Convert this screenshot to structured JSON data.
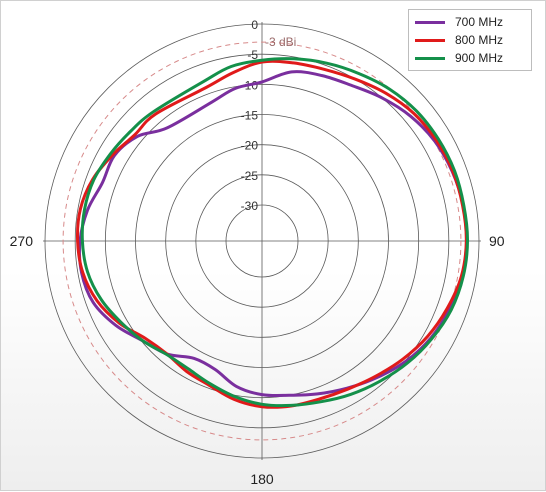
{
  "chart_data": {
    "type": "polar-line",
    "r_axis": {
      "ticks": [
        0,
        -5,
        -10,
        -15,
        -20,
        -25,
        -30
      ],
      "tick_labels": [
        "0",
        "-5",
        "-10",
        "-15",
        "-20",
        "-25",
        "-30"
      ],
      "range": [
        -30,
        0
      ]
    },
    "angle_labels": [
      "90",
      "180",
      "270"
    ],
    "reference": {
      "label": "-3 dBi",
      "value": -3,
      "color": "#d78a8a"
    },
    "series": [
      {
        "name": "700 MHz",
        "color": "#7a2f9e",
        "theta": [
          0,
          10,
          20,
          30,
          40,
          50,
          60,
          70,
          80,
          90,
          100,
          110,
          120,
          130,
          140,
          150,
          160,
          170,
          180,
          190,
          200,
          210,
          220,
          230,
          240,
          250,
          260,
          270,
          280,
          290,
          300,
          310,
          320,
          340,
          350
        ],
        "r": [
          -9.6,
          -7.5,
          -6.8,
          -6.2,
          -5.0,
          -3.8,
          -2.9,
          -2.4,
          -2.1,
          -2.0,
          -2.3,
          -2.9,
          -3.7,
          -4.9,
          -6.4,
          -7.8,
          -9.0,
          -10.0,
          -10.5,
          -11.5,
          -13.3,
          -13.5,
          -11.5,
          -10.2,
          -8.0,
          -6.2,
          -5.6,
          -5.8,
          -6.6,
          -7.8,
          -7.7,
          -9.0,
          -11.5,
          -11.5,
          -10.3
        ]
      },
      {
        "name": "800 MHz",
        "color": "#e01a1a",
        "theta": [
          0,
          10,
          20,
          30,
          40,
          50,
          60,
          70,
          80,
          90,
          100,
          110,
          120,
          130,
          140,
          150,
          160,
          170,
          180,
          190,
          200,
          210,
          220,
          230,
          240,
          250,
          260,
          270,
          280,
          290,
          300,
          310,
          320,
          340,
          350
        ],
        "r": [
          -6.3,
          -6.0,
          -5.7,
          -5.0,
          -4.0,
          -3.1,
          -2.6,
          -2.3,
          -2.2,
          -2.1,
          -2.4,
          -3.3,
          -4.3,
          -5.5,
          -6.7,
          -7.6,
          -8.1,
          -8.2,
          -8.5,
          -9.3,
          -10.5,
          -11.0,
          -11.5,
          -10.8,
          -8.7,
          -6.9,
          -5.8,
          -5.4,
          -5.4,
          -6.1,
          -7.4,
          -8.5,
          -8.5,
          -8.9,
          -7.7
        ]
      },
      {
        "name": "900 MHz",
        "color": "#14904a",
        "theta": [
          0,
          10,
          20,
          30,
          40,
          50,
          60,
          70,
          80,
          90,
          100,
          110,
          120,
          130,
          140,
          150,
          160,
          170,
          180,
          190,
          200,
          210,
          220,
          230,
          240,
          250,
          260,
          270,
          280,
          290,
          300,
          310,
          320,
          340,
          350
        ],
        "r": [
          -6.0,
          -5.3,
          -4.6,
          -3.9,
          -3.1,
          -2.5,
          -2.2,
          -2.0,
          -2.0,
          -1.9,
          -2.1,
          -2.6,
          -3.5,
          -4.5,
          -5.6,
          -6.6,
          -7.6,
          -8.3,
          -8.9,
          -9.8,
          -10.8,
          -11.5,
          -11.4,
          -10.2,
          -9.0,
          -7.6,
          -6.6,
          -6.2,
          -6.1,
          -6.3,
          -7.0,
          -7.6,
          -8.0,
          -7.8,
          -6.6
        ]
      }
    ],
    "legend_position": "top-right",
    "grid": true
  }
}
